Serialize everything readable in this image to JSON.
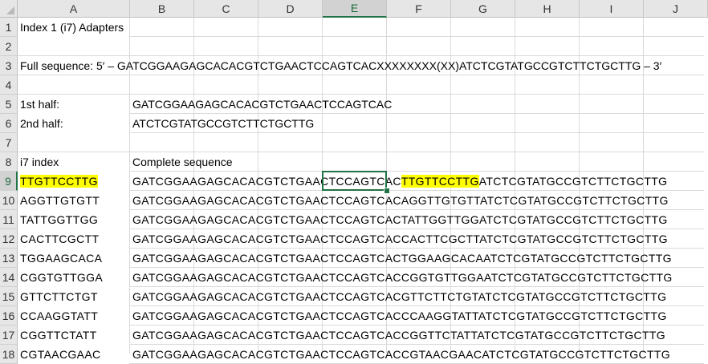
{
  "columns": [
    "A",
    "B",
    "C",
    "D",
    "E",
    "F",
    "G",
    "H",
    "I",
    "J"
  ],
  "selected_column": "E",
  "selected_row": 9,
  "rows": [
    {
      "num": "1",
      "a": "Index 1 (i7) Adapters",
      "b": ""
    },
    {
      "num": "2",
      "a": "",
      "b": ""
    },
    {
      "num": "3",
      "a": "Full sequence: 5′ – GATCGGAAGAGCACACGTCTGAACTCCAGTCACXXXXXXXX(XX)ATCTCGTATGCCGTCTTCTGCTTG – 3′",
      "b": ""
    },
    {
      "num": "4",
      "a": "",
      "b": ""
    },
    {
      "num": "5",
      "a": "1st half:",
      "b": "GATCGGAAGAGCACACGTCTGAACTCCAGTCAC"
    },
    {
      "num": "6",
      "a": "2nd half:",
      "b": "ATCTCGTATGCCGTCTTCTGCTTG"
    },
    {
      "num": "7",
      "a": "",
      "b": ""
    },
    {
      "num": "8",
      "a": "i7 index",
      "b": "Complete sequence"
    },
    {
      "num": "9",
      "a": "TTGTTCCTTG",
      "b_pre": "GATCGGAAGAGCACACGTCTGAACTCCAGTCAC",
      "b_mid": "TTGTTCCTTG",
      "b_post": "ATCTCGTATGCCGTCTTCTGCTTG"
    },
    {
      "num": "10",
      "a": "AGGTTGTGTT",
      "b": "GATCGGAAGAGCACACGTCTGAACTCCAGTCACAGGTTGTGTTATCTCGTATGCCGTCTTCTGCTTG"
    },
    {
      "num": "11",
      "a": "TATTGGTTGG",
      "b": "GATCGGAAGAGCACACGTCTGAACTCCAGTCACTATTGGTTGGATCTCGTATGCCGTCTTCTGCTTG"
    },
    {
      "num": "12",
      "a": "CACTTCGCTT",
      "b": "GATCGGAAGAGCACACGTCTGAACTCCAGTCACCACTTCGCTTATCTCGTATGCCGTCTTCTGCTTG"
    },
    {
      "num": "13",
      "a": "TGGAAGCACA",
      "b": "GATCGGAAGAGCACACGTCTGAACTCCAGTCACTGGAAGCACAATCTCGTATGCCGTCTTCTGCTTG"
    },
    {
      "num": "14",
      "a": "CGGTGTTGGA",
      "b": "GATCGGAAGAGCACACGTCTGAACTCCAGTCACCGGTGTTGGAATCTCGTATGCCGTCTTCTGCTTG"
    },
    {
      "num": "15",
      "a": "GTTCTTCTGT",
      "b": "GATCGGAAGAGCACACGTCTGAACTCCAGTCACGTTCTTCTGTATCTCGTATGCCGTCTTCTGCTTG"
    },
    {
      "num": "16",
      "a": "CCAAGGTATT",
      "b": "GATCGGAAGAGCACACGTCTGAACTCCAGTCACCCAAGGTATTATCTCGTATGCCGTCTTCTGCTTG"
    },
    {
      "num": "17",
      "a": "CGGTTCTATT",
      "b": "GATCGGAAGAGCACACGTCTGAACTCCAGTCACCGGTTCTATTATCTCGTATGCCGTCTTCTGCTTG"
    },
    {
      "num": "18",
      "a": "CGTAACGAAC",
      "b": "GATCGGAAGAGCACACGTCTGAACTCCAGTCACCGTAACGAACATCTCGTATGCCGTCTTCTGCTTG"
    }
  ],
  "colors": {
    "highlight": "#ffff00",
    "selection": "#217346",
    "header_bg": "#e6e6e6"
  }
}
